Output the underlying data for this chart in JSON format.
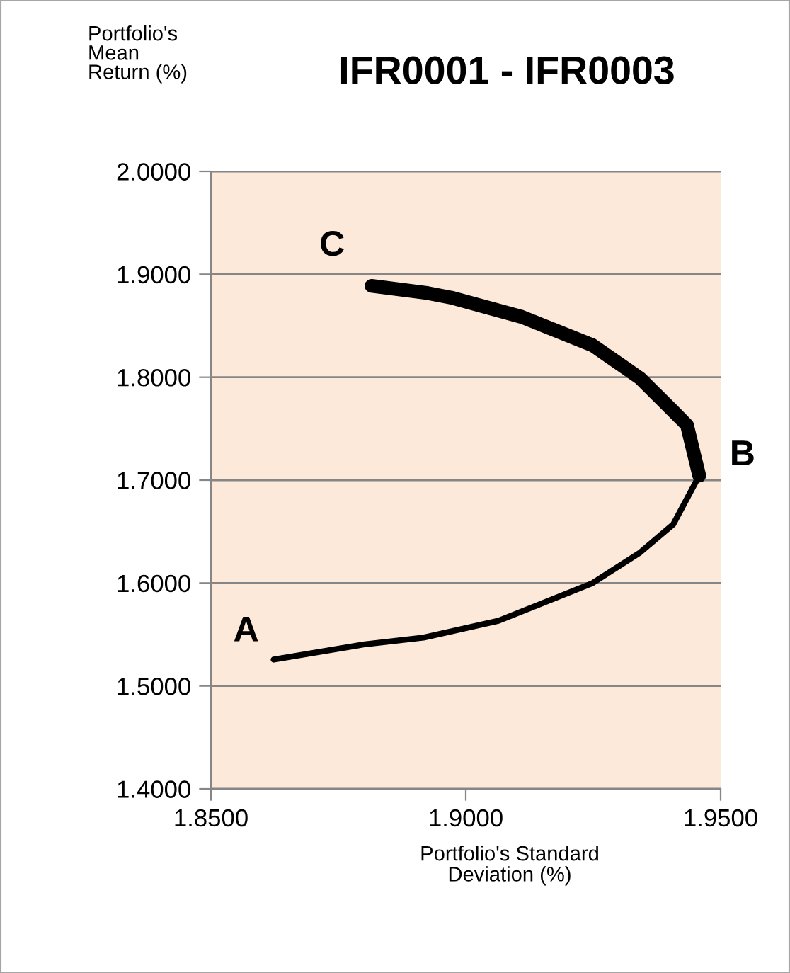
{
  "chart_data": {
    "type": "line",
    "title": "IFR0001 - IFR0003",
    "xlabel": "Portfolio's Standard\nDeviation (%)",
    "ylabel": "Portfolio's\nMean\nReturn (%)",
    "series": [
      {
        "color": "#000000",
        "x": [
          1.8623,
          1.8799,
          1.8917,
          1.9064,
          1.9249,
          1.9342,
          1.9407,
          1.9458
        ],
        "values": [
          1.5256,
          1.5403,
          1.547,
          1.5633,
          1.6,
          1.6297,
          1.657,
          1.7044
        ]
      },
      {
        "color": "#000000",
        "x": [
          1.9458,
          1.9434,
          1.9407,
          1.9342,
          1.9249,
          1.911,
          1.8971,
          1.8926,
          1.8815
        ],
        "values": [
          1.7044,
          1.7535,
          1.767,
          1.799,
          1.831,
          1.8586,
          1.8774,
          1.8817,
          1.8888
        ]
      }
    ],
    "annotations": [
      {
        "text": "A",
        "x": 1.8623,
        "y": 1.5256
      },
      {
        "text": "B",
        "x": 1.9458,
        "y": 1.7044
      },
      {
        "text": "C",
        "x": 1.8815,
        "y": 1.8888
      }
    ],
    "xlim": [
      1.85,
      1.95
    ],
    "ylim": [
      1.4,
      2.0
    ],
    "xticks": [
      {
        "value": 1.85,
        "label": "1.8500"
      },
      {
        "value": 1.9,
        "label": "1.9000"
      },
      {
        "value": 1.95,
        "label": "1.9500"
      }
    ],
    "yticks": [
      {
        "value": 1.4,
        "label": "1.4000"
      },
      {
        "value": 1.5,
        "label": "1.5000"
      },
      {
        "value": 1.6,
        "label": "1.6000"
      },
      {
        "value": 1.7,
        "label": "1.7000"
      },
      {
        "value": 1.8,
        "label": "1.8000"
      },
      {
        "value": 1.9,
        "label": "1.9000"
      },
      {
        "value": 2.0,
        "label": "2.0000"
      }
    ],
    "grid": "y"
  }
}
